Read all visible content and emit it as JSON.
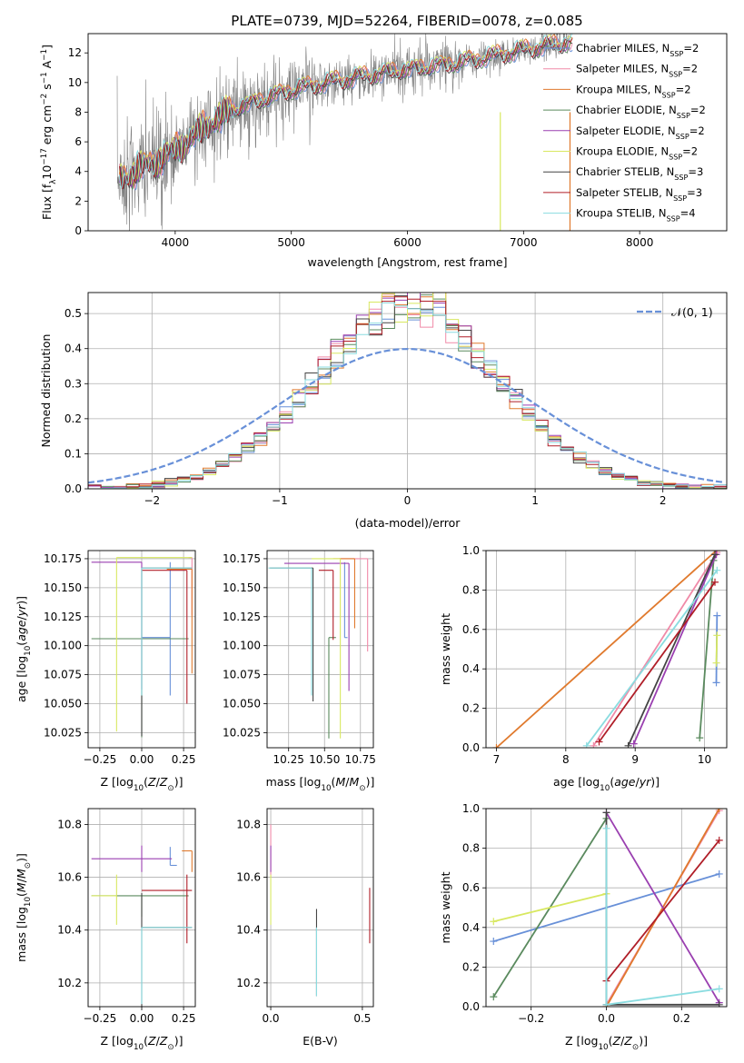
{
  "figure": {
    "title": "PLATE=0739, MJD=52264, FIBERID=0078, z=0.085"
  },
  "chart_data": [
    {
      "id": "spectrum",
      "type": "line",
      "xlabel": "wavelength [Angstrom, rest frame]",
      "ylabel": "Flux [f_λ 10^-17 erg cm^-2 s^-1 A^-1]",
      "xlim": [
        3250,
        8750
      ],
      "ylim": [
        0,
        13.3
      ],
      "xticks": [
        "4000",
        "5000",
        "6000",
        "7000",
        "8000"
      ],
      "yticks": [
        "0",
        "2",
        "4",
        "6",
        "8",
        "10",
        "12"
      ],
      "grid": false,
      "legend_position": "right",
      "data_series": {
        "name": "data",
        "color": "#808080",
        "x_range": [
          3500,
          7400
        ]
      },
      "series": [
        {
          "name": "Chabrier MILES, N_SSP=2",
          "color": "#6890d8"
        },
        {
          "name": "Salpeter MILES, N_SSP=2",
          "color": "#f08aa8"
        },
        {
          "name": "Kroupa MILES, N_SSP=2",
          "color": "#e07a2e"
        },
        {
          "name": "Chabrier ELODIE, N_SSP=2",
          "color": "#5a8a5e"
        },
        {
          "name": "Salpeter ELODIE, N_SSP=2",
          "color": "#9a3fb0"
        },
        {
          "name": "Kroupa ELODIE, N_SSP=2",
          "color": "#d8e860"
        },
        {
          "name": "Chabrier STELIB, N_SSP=3",
          "color": "#444444"
        },
        {
          "name": "Salpeter STELIB, N_SSP=3",
          "color": "#b01e28"
        },
        {
          "name": "Kroupa STELIB, N_SSP=4",
          "color": "#8adce0"
        }
      ],
      "continuum": {
        "x": [
          3550,
          3700,
          3900,
          4100,
          4300,
          4500,
          4800,
          5000,
          5300,
          5600,
          6000,
          6400,
          6800,
          7200,
          7400
        ],
        "y": [
          3.6,
          4.2,
          5.0,
          6.0,
          7.3,
          8.2,
          9.0,
          9.5,
          10.0,
          10.4,
          10.9,
          11.3,
          11.9,
          12.5,
          12.7
        ]
      }
    },
    {
      "id": "residuals",
      "type": "histogram",
      "xlabel": "(data-model)/error",
      "ylabel": "Normed distribution",
      "xlim": [
        -2.5,
        2.5
      ],
      "ylim": [
        0,
        0.56
      ],
      "xticks": [
        "−2",
        "−1",
        "0",
        "1",
        "2"
      ],
      "yticks": [
        "0.0",
        "0.1",
        "0.2",
        "0.3",
        "0.4",
        "0.5"
      ],
      "grid": true,
      "legend": "𝒩(0, 1)",
      "legend_position": "top-right",
      "reference_curve": {
        "name": "normal(0,1)",
        "color": "#6890d8"
      }
    },
    {
      "id": "age-vs-Z",
      "type": "errorbar",
      "xlabel": "Z [log10(Z/Z⊙)]",
      "ylabel": "age [log10(age/yr)]",
      "xlim": [
        -0.32,
        0.32
      ],
      "ylim": [
        10.012,
        10.182
      ],
      "xticks": [
        "−0.25",
        "0.00",
        "0.25"
      ],
      "yticks": [
        "10.025",
        "10.050",
        "10.075",
        "10.100",
        "10.125",
        "10.150",
        "10.175"
      ],
      "points": [
        {
          "series": "Chabrier MILES",
          "x": 0.17,
          "xerr": [
            0.17,
            0.0
          ],
          "y": 10.107,
          "yerr": [
            0.05,
            0.065
          ]
        },
        {
          "series": "Salpeter MILES",
          "x": 0.3,
          "xerr": [
            0.02,
            0.0
          ],
          "y": 10.176,
          "yerr": [
            0.05,
            0.0
          ]
        },
        {
          "series": "Kroupa MILES",
          "x": 0.3,
          "xerr": [
            0.15,
            0.0
          ],
          "y": 10.166,
          "yerr": [
            0.09,
            0.0
          ]
        },
        {
          "series": "Chabrier ELODIE",
          "x": 0.0,
          "xerr": [
            0.3,
            0.28
          ],
          "y": 10.106,
          "yerr": [
            0.085,
            0.06
          ]
        },
        {
          "series": "Salpeter ELODIE",
          "x": 0.0,
          "xerr": [
            0.3,
            0.0
          ],
          "y": 10.172,
          "yerr": [
            0.11,
            0.0
          ]
        },
        {
          "series": "Kroupa ELODIE",
          "x": -0.15,
          "xerr": [
            0.0,
            0.45
          ],
          "y": 10.176,
          "yerr": [
            0.15,
            0.0
          ]
        },
        {
          "series": "Chabrier STELIB",
          "x": 0.0,
          "xerr": [
            0.0,
            0.3
          ],
          "y": 10.167,
          "yerr": [
            0.145,
            0.0
          ]
        },
        {
          "series": "Salpeter STELIB",
          "x": 0.27,
          "xerr": [
            0.27,
            0.0
          ],
          "y": 10.165,
          "yerr": [
            0.115,
            0.0
          ]
        },
        {
          "series": "Kroupa STELIB",
          "x": 0.0,
          "xerr": [
            0.0,
            0.3
          ],
          "y": 10.167,
          "yerr": [
            0.11,
            0.0
          ]
        }
      ]
    },
    {
      "id": "age-vs-mass",
      "type": "errorbar",
      "xlabel": "mass [log10(M/M⊙)]",
      "ylabel": "",
      "xlim": [
        10.1,
        10.84
      ],
      "ylim": [
        10.012,
        10.182
      ],
      "xticks": [
        "10.25",
        "10.50",
        "10.75"
      ],
      "yticks": [
        "10.025",
        "10.050",
        "10.075",
        "10.100",
        "10.125",
        "10.150",
        "10.175"
      ],
      "points": [
        {
          "series": "Chabrier MILES",
          "x": 10.64,
          "xerr": [
            0.0,
            0.02
          ],
          "y": 10.107,
          "yerr": [
            0.0,
            0.065
          ]
        },
        {
          "series": "Salpeter MILES",
          "x": 10.8,
          "xerr": [
            0.2,
            0.0
          ],
          "y": 10.175,
          "yerr": [
            0.08,
            0.0
          ]
        },
        {
          "series": "Kroupa MILES",
          "x": 10.71,
          "xerr": [
            0.15,
            0.0
          ],
          "y": 10.175,
          "yerr": [
            0.06,
            0.0
          ]
        },
        {
          "series": "Chabrier ELODIE",
          "x": 10.53,
          "xerr": [
            0.0,
            0.05
          ],
          "y": 10.107,
          "yerr": [
            0.087,
            0.0
          ]
        },
        {
          "series": "Salpeter ELODIE",
          "x": 10.67,
          "xerr": [
            0.45,
            0.0
          ],
          "y": 10.171,
          "yerr": [
            0.11,
            0.0
          ]
        },
        {
          "series": "Kroupa ELODIE",
          "x": 10.61,
          "xerr": [
            0.2,
            0.0
          ],
          "y": 10.175,
          "yerr": [
            0.155,
            0.0
          ]
        },
        {
          "series": "Chabrier STELIB",
          "x": 10.42,
          "xerr": [
            0.3,
            0.0
          ],
          "y": 10.167,
          "yerr": [
            0.115,
            0.0
          ]
        },
        {
          "series": "Salpeter STELIB",
          "x": 10.56,
          "xerr": [
            0.1,
            0.0
          ],
          "y": 10.165,
          "yerr": [
            0.06,
            0.0
          ]
        },
        {
          "series": "Kroupa STELIB",
          "x": 10.41,
          "xerr": [
            0.3,
            0.0
          ],
          "y": 10.167,
          "yerr": [
            0.11,
            0.0
          ]
        }
      ]
    },
    {
      "id": "weight-vs-age",
      "type": "line",
      "xlabel": "age [log10(age/yr)]",
      "ylabel": "mass weight",
      "xlim": [
        6.85,
        10.32
      ],
      "ylim": [
        0,
        1.0
      ],
      "xticks": [
        "7",
        "8",
        "9",
        "10"
      ],
      "yticks": [
        "0.0",
        "0.2",
        "0.4",
        "0.6",
        "0.8",
        "1.0"
      ],
      "grid": true,
      "series": [
        {
          "name": "Chabrier MILES",
          "color": "#6890d8",
          "x": [
            10.17,
            10.18
          ],
          "y": [
            0.33,
            0.67
          ]
        },
        {
          "name": "Salpeter MILES",
          "color": "#f08aa8",
          "x": [
            8.4,
            10.18
          ],
          "y": [
            0.01,
            0.99
          ]
        },
        {
          "name": "Kroupa MILES",
          "color": "#e07a2e",
          "x": [
            7.0,
            10.17
          ],
          "y": [
            0.0,
            1.0
          ]
        },
        {
          "name": "Chabrier ELODIE",
          "color": "#5a8a5e",
          "x": [
            9.93,
            10.13
          ],
          "y": [
            0.05,
            0.95
          ]
        },
        {
          "name": "Salpeter ELODIE",
          "color": "#9a3fb0",
          "x": [
            8.98,
            10.17
          ],
          "y": [
            0.02,
            0.98
          ]
        },
        {
          "name": "Kroupa ELODIE",
          "color": "#d8e860",
          "x": [
            10.17,
            10.18
          ],
          "y": [
            0.43,
            0.57
          ]
        },
        {
          "name": "Chabrier STELIB",
          "color": "#444444",
          "x": [
            8.9,
            10.15
          ],
          "y": [
            0.01,
            0.98
          ]
        },
        {
          "name": "Salpeter STELIB",
          "color": "#b01e28",
          "x": [
            8.48,
            10.15
          ],
          "y": [
            0.03,
            0.84
          ]
        },
        {
          "name": "Kroupa STELIB",
          "color": "#8adce0",
          "x": [
            8.3,
            10.18
          ],
          "y": [
            0.01,
            0.9
          ]
        }
      ]
    },
    {
      "id": "mass-vs-Z",
      "type": "errorbar",
      "xlabel": "Z [log10(Z/Z⊙)]",
      "ylabel": "mass [log10(M/M⊙)]",
      "xlim": [
        -0.32,
        0.32
      ],
      "ylim": [
        10.11,
        10.86
      ],
      "xticks": [
        "−0.25",
        "0.00",
        "0.25"
      ],
      "yticks": [
        "10.2",
        "10.4",
        "10.6",
        "10.8"
      ],
      "points": [
        {
          "series": "Chabrier MILES",
          "x": 0.17,
          "xerr": [
            0.0,
            0.04
          ],
          "y": 10.645,
          "yerr": [
            0.0,
            0.07
          ]
        },
        {
          "series": "Salpeter MILES",
          "x": 0.3,
          "xerr": [
            0.0,
            0.0
          ],
          "y": 10.8,
          "yerr": [
            0.0,
            0.0
          ]
        },
        {
          "series": "Kroupa MILES",
          "x": 0.3,
          "xerr": [
            0.06,
            0.0
          ],
          "y": 10.7,
          "yerr": [
            0.08,
            0.0
          ]
        },
        {
          "series": "Chabrier ELODIE",
          "x": 0.0,
          "xerr": [
            0.3,
            0.28
          ],
          "y": 10.53,
          "yerr": [
            0.08,
            0.0
          ]
        },
        {
          "series": "Salpeter ELODIE",
          "x": 0.0,
          "xerr": [
            0.3,
            0.18
          ],
          "y": 10.67,
          "yerr": [
            0.05,
            0.05
          ]
        },
        {
          "series": "Kroupa ELODIE",
          "x": -0.15,
          "xerr": [
            0.15,
            0.0
          ],
          "y": 10.53,
          "yerr": [
            0.11,
            0.08
          ]
        },
        {
          "series": "Chabrier STELIB",
          "x": 0.0,
          "xerr": [
            0.0,
            0.3
          ],
          "y": 10.41,
          "yerr": [
            0.36,
            0.13
          ]
        },
        {
          "series": "Salpeter STELIB",
          "x": 0.27,
          "xerr": [
            0.27,
            0.03
          ],
          "y": 10.55,
          "yerr": [
            0.2,
            0.06
          ]
        },
        {
          "series": "Kroupa STELIB",
          "x": 0.0,
          "xerr": [
            0.0,
            0.3
          ],
          "y": 10.41,
          "yerr": [
            0.29,
            0.0
          ]
        }
      ]
    },
    {
      "id": "mass-vs-ebv",
      "type": "errorbar",
      "xlabel": "E(B-V)",
      "ylabel": "",
      "xlim": [
        -0.02,
        0.56
      ],
      "ylim": [
        10.11,
        10.86
      ],
      "xticks": [
        "0.0",
        "0.5"
      ],
      "yticks": [
        "10.2",
        "10.4",
        "10.6",
        "10.8"
      ],
      "points": [
        {
          "series": "Salpeter MILES",
          "x": 0.0,
          "y": 10.8,
          "yerr": [
            0.2,
            0.0
          ]
        },
        {
          "series": "Salpeter ELODIE",
          "x": 0.0,
          "y": 10.67,
          "yerr": [
            0.05,
            0.05
          ]
        },
        {
          "series": "Kroupa ELODIE",
          "x": 0.0,
          "y": 10.53,
          "yerr": [
            0.11,
            0.08
          ]
        },
        {
          "series": "Chabrier STELIB",
          "x": 0.25,
          "y": 10.41,
          "yerr": [
            0.26,
            0.07
          ]
        },
        {
          "series": "Kroupa STELIB",
          "x": 0.25,
          "y": 10.41,
          "yerr": [
            0.26,
            0.0
          ]
        },
        {
          "series": "Salpeter STELIB",
          "x": 0.54,
          "y": 10.45,
          "yerr": [
            0.1,
            0.11
          ]
        }
      ]
    },
    {
      "id": "weight-vs-Z",
      "type": "line",
      "xlabel": "Z [log10(Z/Z⊙)]",
      "ylabel": "mass weight",
      "xlim": [
        -0.32,
        0.32
      ],
      "ylim": [
        0,
        1.0
      ],
      "xticks": [
        "−0.2",
        "0.0",
        "0.2"
      ],
      "yticks": [
        "0.0",
        "0.2",
        "0.4",
        "0.6",
        "0.8",
        "1.0"
      ],
      "grid": true,
      "series": [
        {
          "name": "Chabrier MILES",
          "color": "#6890d8",
          "x": [
            -0.3,
            0.3
          ],
          "y": [
            0.33,
            0.67
          ]
        },
        {
          "name": "Salpeter MILES",
          "color": "#f08aa8",
          "x": [
            0.0,
            0.3
          ],
          "y": [
            0.01,
            0.99
          ]
        },
        {
          "name": "Kroupa MILES",
          "color": "#e07a2e",
          "x": [
            0.0,
            0.3
          ],
          "y": [
            0.0,
            1.0
          ]
        },
        {
          "name": "Chabrier ELODIE",
          "color": "#5a8a5e",
          "x": [
            -0.3,
            0.0
          ],
          "y": [
            0.05,
            0.95
          ]
        },
        {
          "name": "Salpeter ELODIE",
          "color": "#9a3fb0",
          "x": [
            0.0,
            0.3
          ],
          "y": [
            0.98,
            0.02
          ]
        },
        {
          "name": "Kroupa ELODIE",
          "color": "#d8e860",
          "x": [
            -0.3,
            0.0
          ],
          "y": [
            0.43,
            0.57
          ]
        },
        {
          "name": "Chabrier STELIB",
          "color": "#444444",
          "x": [
            0.0,
            0.0,
            0.3
          ],
          "y": [
            0.98,
            0.01,
            0.01
          ]
        },
        {
          "name": "Salpeter STELIB",
          "color": "#b01e28",
          "x": [
            0.0,
            0.3
          ],
          "y": [
            0.13,
            0.84
          ]
        },
        {
          "name": "Kroupa STELIB",
          "color": "#8adce0",
          "x": [
            0.0,
            0.0,
            0.3
          ],
          "y": [
            0.9,
            0.01,
            0.09
          ]
        }
      ]
    }
  ]
}
